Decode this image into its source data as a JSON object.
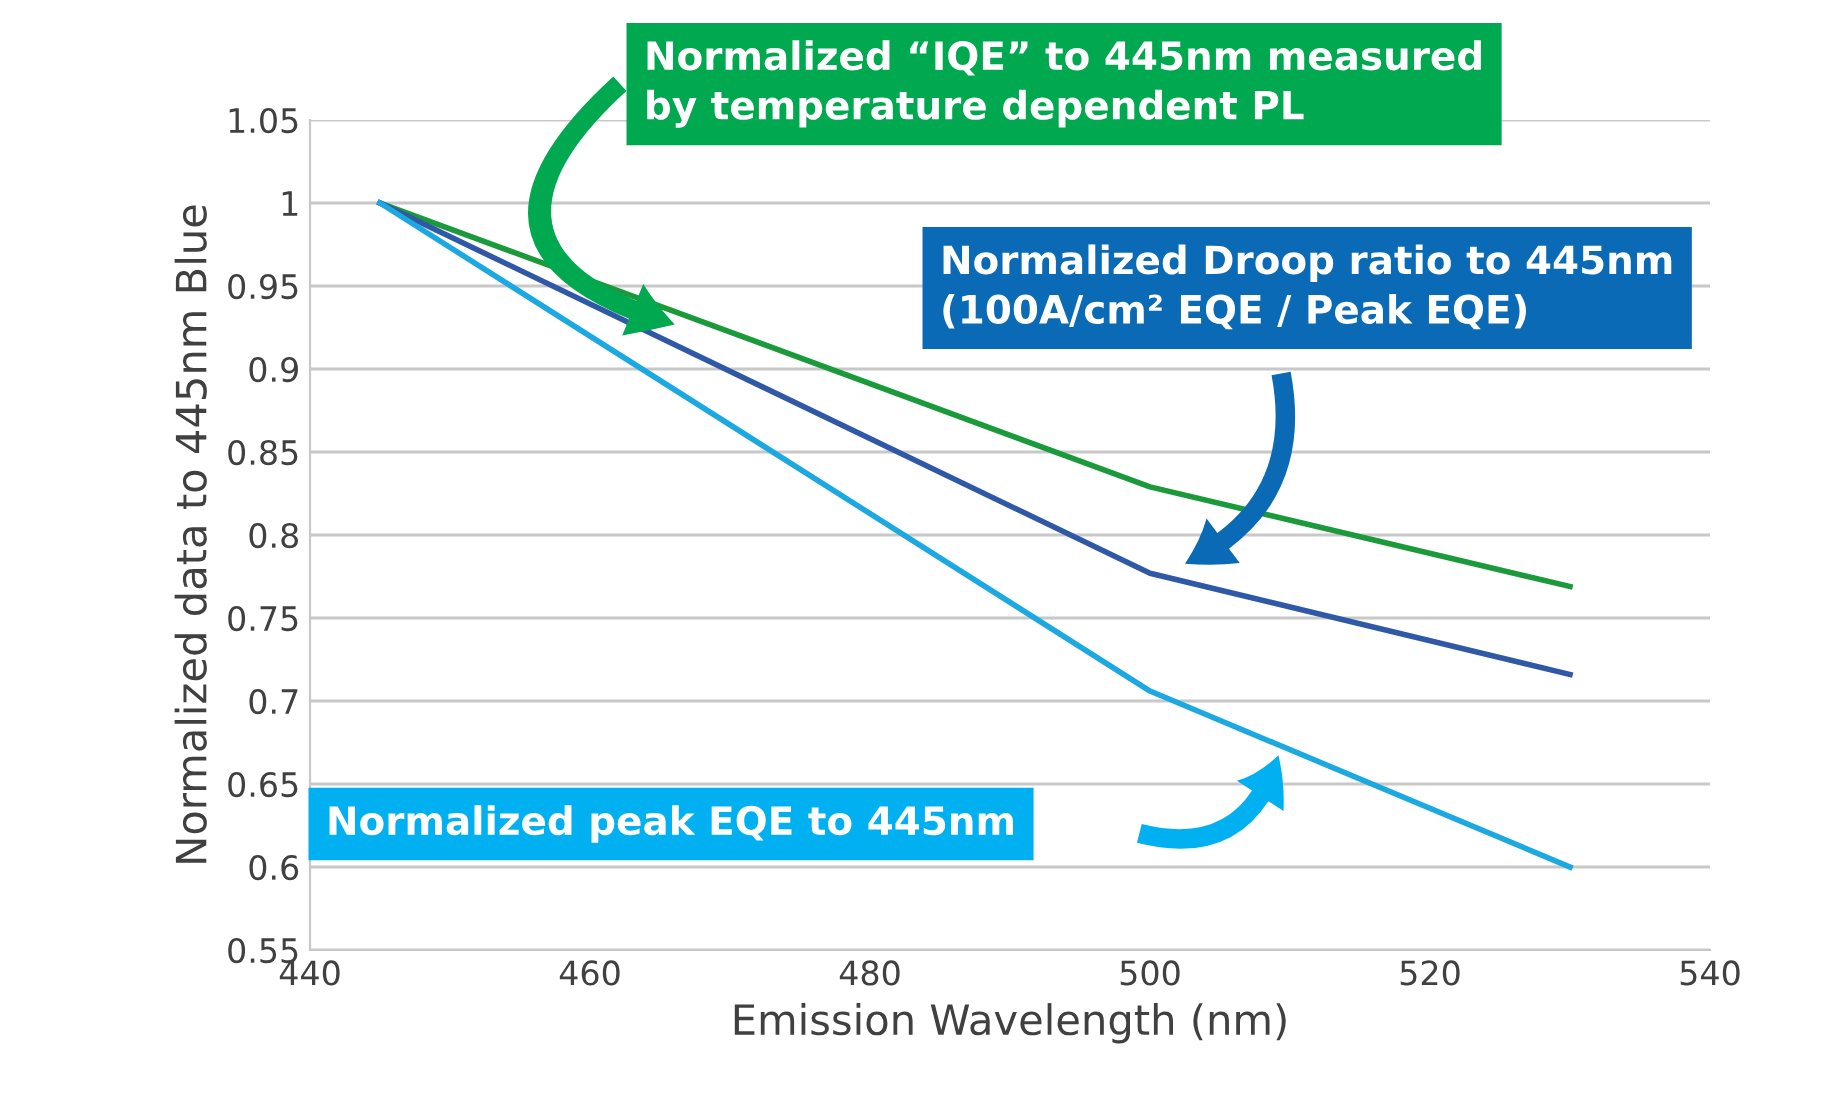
{
  "chart_data": {
    "type": "line",
    "xlabel": "Emission Wavelength (nm)",
    "ylabel": "Normalized data to 445nm Blue",
    "x": [
      445,
      500,
      530
    ],
    "series": [
      {
        "color": "#1a9a3a",
        "values": [
          1,
          0.829,
          0.769
        ]
      },
      {
        "color": "#2f58a6",
        "values": [
          1,
          0.777,
          0.716
        ]
      },
      {
        "color": "#1ca8e0",
        "values": [
          1,
          0.706,
          0.6
        ]
      }
    ],
    "xlim": [
      440,
      540
    ],
    "xticks": [
      440,
      460,
      480,
      500,
      520,
      540
    ],
    "ylim": [
      0.55,
      1.05
    ],
    "yticks": [
      0.55,
      0.6,
      0.65,
      0.7,
      0.75,
      0.8,
      0.85,
      0.9,
      0.95,
      1,
      1.05
    ],
    "grid": "y",
    "marker": "none",
    "line_style": "solid",
    "annotations": [
      "Normalized “IQE” to 445nm measured\nby temperature dependent PL",
      "Normalized Droop ratio to 445nm\n(100A/cm² EQE / Peak EQE)",
      "Normalized peak EQE to 445nm"
    ]
  }
}
